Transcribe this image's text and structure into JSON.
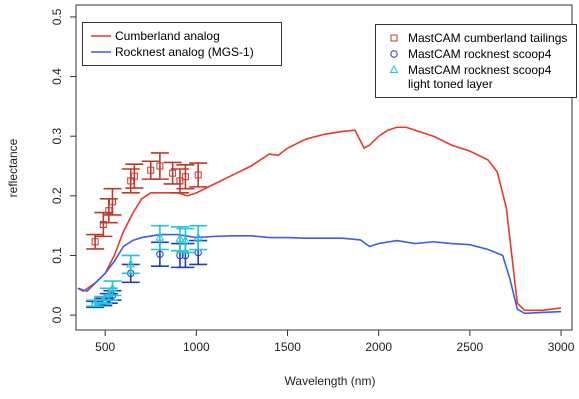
{
  "chart_data": {
    "type": "line",
    "x_label": "Wavelength (nm)",
    "y_label": "reflectance",
    "xlim": [
      340,
      3060
    ],
    "ylim": [
      -0.025,
      0.52
    ],
    "xticks": [
      500,
      1000,
      1500,
      2000,
      2500,
      3000
    ],
    "yticks": [
      {
        "value": 0,
        "label": "0.0"
      },
      0.1,
      0.2,
      0.3,
      0.4,
      0.5
    ],
    "series": [
      {
        "name": "Cumberland analog",
        "color": "#e8392c",
        "legend": "left",
        "x": [
          350,
          380,
          450,
          500,
          550,
          600,
          650,
          700,
          750,
          800,
          850,
          900,
          950,
          1000,
          1100,
          1200,
          1300,
          1400,
          1450,
          1500,
          1600,
          1700,
          1800,
          1870,
          1920,
          1950,
          2000,
          2050,
          2100,
          2150,
          2200,
          2300,
          2400,
          2500,
          2600,
          2650,
          2700,
          2730,
          2760,
          2800,
          2900,
          3000
        ],
        "values": [
          0.045,
          0.04,
          0.055,
          0.07,
          0.1,
          0.14,
          0.17,
          0.195,
          0.205,
          0.205,
          0.205,
          0.205,
          0.2,
          0.205,
          0.22,
          0.235,
          0.25,
          0.27,
          0.268,
          0.28,
          0.295,
          0.303,
          0.308,
          0.31,
          0.28,
          0.285,
          0.3,
          0.31,
          0.315,
          0.315,
          0.31,
          0.3,
          0.285,
          0.275,
          0.26,
          0.24,
          0.18,
          0.1,
          0.02,
          0.008,
          0.008,
          0.012
        ]
      },
      {
        "name": "Rocknest analog (MGS-1)",
        "color": "#3a5ee8",
        "legend": "left",
        "x": [
          350,
          400,
          500,
          550,
          600,
          650,
          700,
          800,
          900,
          1000,
          1100,
          1200,
          1300,
          1400,
          1500,
          1600,
          1800,
          1900,
          1950,
          2000,
          2100,
          2200,
          2300,
          2400,
          2500,
          2600,
          2680,
          2720,
          2760,
          2800,
          3000
        ],
        "values": [
          0.045,
          0.04,
          0.07,
          0.09,
          0.115,
          0.125,
          0.13,
          0.135,
          0.135,
          0.13,
          0.132,
          0.133,
          0.133,
          0.13,
          0.13,
          0.129,
          0.129,
          0.126,
          0.115,
          0.12,
          0.125,
          0.12,
          0.123,
          0.12,
          0.118,
          0.11,
          0.1,
          0.06,
          0.01,
          0.003,
          0.006
        ]
      },
      {
        "name": "MastCAM cumberland tailings",
        "color": "#c0392b",
        "marker": "square",
        "legend": "right",
        "x": [
          445,
          490,
          520,
          540,
          640,
          660,
          750,
          800,
          870,
          910,
          940,
          1010
        ],
        "values": [
          0.123,
          0.152,
          0.175,
          0.19,
          0.225,
          0.233,
          0.243,
          0.25,
          0.238,
          0.225,
          0.232,
          0.235
        ],
        "errors": [
          0.012,
          0.02,
          0.02,
          0.022,
          0.02,
          0.02,
          0.015,
          0.022,
          0.018,
          0.02,
          0.02,
          0.02
        ]
      },
      {
        "name": "MastCAM rocknest scoop4",
        "color": "#1f3fbf",
        "marker": "circle",
        "legend": "right",
        "x": [
          445,
          490,
          520,
          540,
          640,
          800,
          910,
          940,
          1010
        ],
        "values": [
          0.018,
          0.022,
          0.028,
          0.033,
          0.07,
          0.102,
          0.1,
          0.1,
          0.105
        ],
        "errors": [
          0.005,
          0.006,
          0.008,
          0.008,
          0.015,
          0.02,
          0.02,
          0.02,
          0.02
        ]
      },
      {
        "name": "MastCAM rocknest scoop4 light toned layer",
        "color": "#22c5d5",
        "marker": "triangle",
        "legend": "right",
        "x": [
          445,
          490,
          520,
          540,
          640,
          800,
          910,
          940,
          1010
        ],
        "values": [
          0.02,
          0.025,
          0.035,
          0.045,
          0.085,
          0.13,
          0.128,
          0.125,
          0.13
        ],
        "errors": [
          0.005,
          0.006,
          0.01,
          0.012,
          0.015,
          0.02,
          0.02,
          0.02,
          0.02
        ]
      }
    ]
  }
}
